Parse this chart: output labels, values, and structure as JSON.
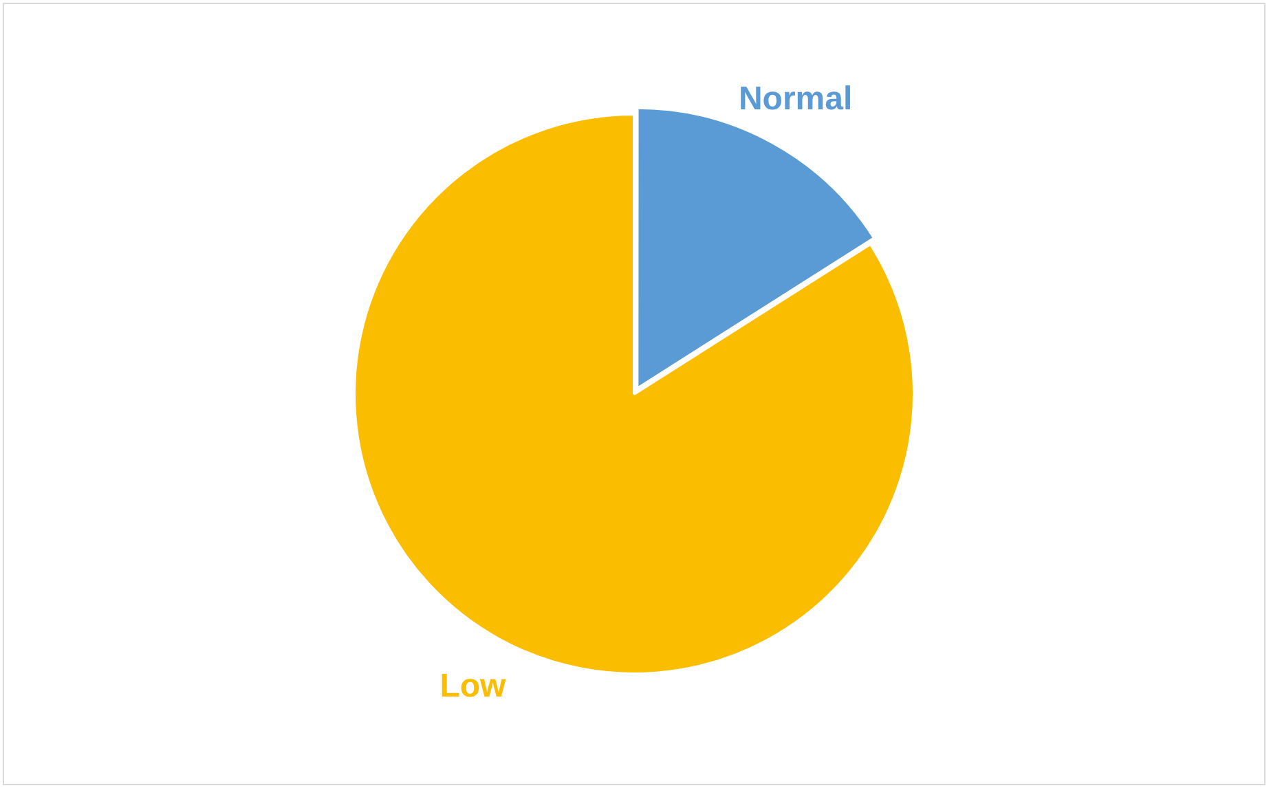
{
  "chart_data": {
    "type": "pie",
    "categories": [
      "Normal",
      "Low"
    ],
    "values": [
      16,
      84
    ],
    "colors": [
      "#5b9bd5",
      "#fabd00"
    ]
  }
}
